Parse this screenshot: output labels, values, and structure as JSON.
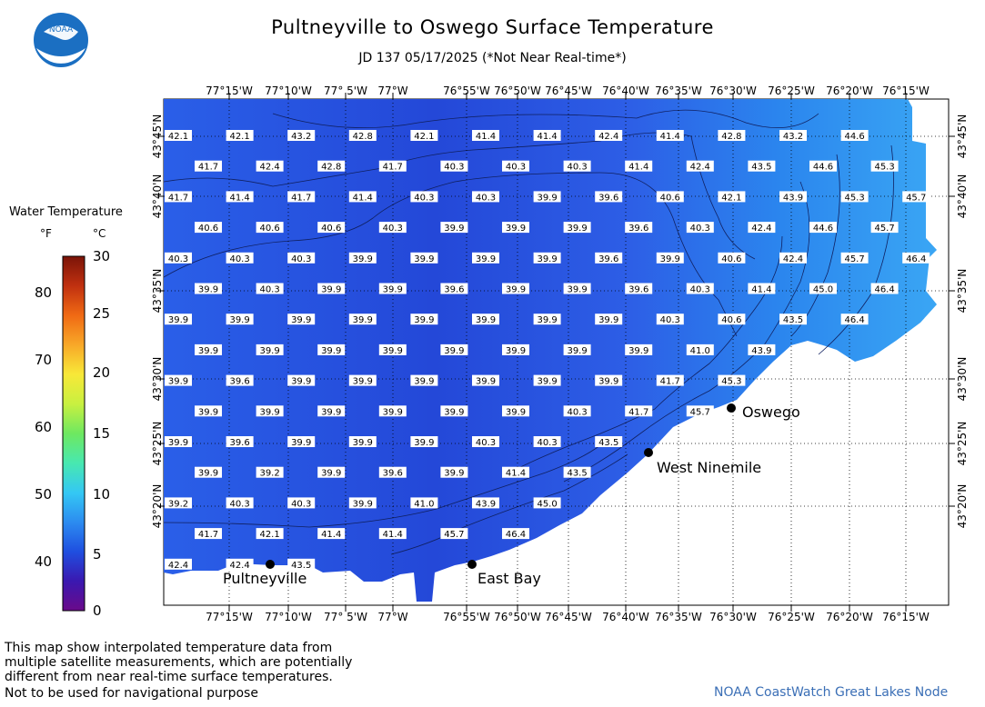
{
  "title": "Pultneyville to Oswego Surface Temperature",
  "subtitle": "JD 137 05/17/2025 (*Not Near Real-time*)",
  "logo_text": "NOAA",
  "legend": {
    "title": "Water Temperature",
    "unit_f": "°F",
    "unit_c": "°C",
    "f_ticks": [
      "80",
      "70",
      "60",
      "50",
      "40"
    ],
    "c_ticks": [
      "30",
      "25",
      "20",
      "15",
      "10",
      "5",
      "0"
    ],
    "colors": [
      "#6a0a8a",
      "#3a18b0",
      "#1f4fe0",
      "#2c8cf0",
      "#34c8f4",
      "#48e8b0",
      "#6ee860",
      "#c8f040",
      "#f8e838",
      "#f8a828",
      "#f06a14",
      "#c03010",
      "#7a1408"
    ]
  },
  "lon_labels": [
    "77°15'W",
    "77°10'W",
    "77° 5'W",
    "77°W",
    "76°55'W",
    "76°50'W",
    "76°45'W",
    "76°40'W",
    "76°35'W",
    "76°30'W",
    "76°25'W",
    "76°20'W",
    "76°15'W"
  ],
  "lat_labels": [
    "43°45'N",
    "43°40'N",
    "43°35'N",
    "43°30'N",
    "43°25'N",
    "43°20'N"
  ],
  "places": [
    {
      "name": "Oswego"
    },
    {
      "name": "West Ninemile"
    },
    {
      "name": "Pultneyville"
    },
    {
      "name": "East Bay"
    }
  ],
  "temperature_rows": [
    [
      "42.1",
      "42.1",
      "43.2",
      "42.8",
      "42.1",
      "41.4",
      "41.4",
      "42.4",
      "41.4",
      "42.8",
      "43.2",
      "44.6"
    ],
    [
      "41.7",
      "42.4",
      "42.8",
      "41.7",
      "40.3",
      "40.3",
      "40.3",
      "41.4",
      "42.4",
      "43.5",
      "44.6",
      "45.3"
    ],
    [
      "41.7",
      "41.4",
      "41.7",
      "41.4",
      "40.3",
      "40.3",
      "39.9",
      "39.6",
      "40.6",
      "42.1",
      "43.9",
      "45.3",
      "45.7"
    ],
    [
      "40.6",
      "40.6",
      "40.6",
      "40.3",
      "39.9",
      "39.9",
      "39.9",
      "39.6",
      "40.3",
      "42.4",
      "44.6",
      "45.7"
    ],
    [
      "40.3",
      "40.3",
      "40.3",
      "39.9",
      "39.9",
      "39.9",
      "39.9",
      "39.6",
      "39.9",
      "40.6",
      "42.4",
      "45.7",
      "46.4"
    ],
    [
      "39.9",
      "40.3",
      "39.9",
      "39.9",
      "39.6",
      "39.9",
      "39.9",
      "39.6",
      "40.3",
      "41.4",
      "45.0",
      "46.4"
    ],
    [
      "39.9",
      "39.9",
      "39.9",
      "39.9",
      "39.9",
      "39.9",
      "39.9",
      "39.9",
      "40.3",
      "40.6",
      "43.5",
      "46.4"
    ],
    [
      "39.9",
      "39.9",
      "39.9",
      "39.9",
      "39.9",
      "39.9",
      "39.9",
      "39.9",
      "41.0",
      "43.9"
    ],
    [
      "39.9",
      "39.6",
      "39.9",
      "39.9",
      "39.9",
      "39.9",
      "39.9",
      "39.9",
      "41.7",
      "45.3"
    ],
    [
      "39.9",
      "39.9",
      "39.9",
      "39.9",
      "39.9",
      "39.9",
      "40.3",
      "41.7",
      "45.7"
    ],
    [
      "39.9",
      "39.6",
      "39.9",
      "39.9",
      "39.9",
      "40.3",
      "40.3",
      "43.5"
    ],
    [
      "39.9",
      "39.2",
      "39.9",
      "39.6",
      "39.9",
      "41.4",
      "43.5"
    ],
    [
      "39.2",
      "40.3",
      "40.3",
      "39.9",
      "41.0",
      "43.9",
      "45.0"
    ],
    [
      "41.7",
      "42.1",
      "41.4",
      "41.4",
      "45.7",
      "46.4"
    ],
    [
      "42.4",
      "42.4",
      "43.5"
    ]
  ],
  "footer_note": [
    "This map show interpolated temperature data from",
    "multiple satellite measurements, which are potentially",
    "different from near real-time surface temperatures."
  ],
  "footer_nav": "Not to be used for navigational purpose",
  "credit": "NOAA CoastWatch Great Lakes Node"
}
